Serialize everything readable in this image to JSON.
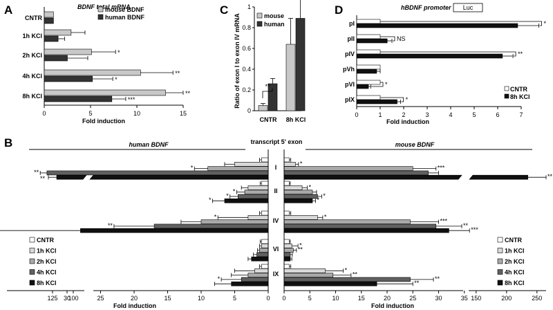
{
  "colors": {
    "mouse": "#c8c8c8",
    "human": "#333333",
    "CNTR": "#ffffff",
    "1h KCl": "#d8d8d8",
    "2h KCl": "#a8a8a8",
    "4h KCl": "#606060",
    "8h KCl": "#101010"
  },
  "chart_data": [
    {
      "id": "A",
      "type": "bar",
      "orientation": "horizontal",
      "panel_label": "A",
      "title": "BDNF total mRNA",
      "xlabel": "Fold induction",
      "ylabel": "",
      "xlim": [
        0,
        15
      ],
      "xticks": [
        "0",
        "5",
        "10",
        "15"
      ],
      "categories": [
        "CNTR",
        "1h KCl",
        "2h KCl",
        "4h KCl",
        "8h KCl"
      ],
      "legend_position": "top-right",
      "series": [
        {
          "name": "mouse BDNF",
          "values": [
            1.0,
            2.9,
            5.1,
            10.4,
            13.1
          ],
          "errors": [
            0.0,
            1.5,
            2.6,
            3.5,
            1.9
          ],
          "sig": [
            "",
            "",
            "*",
            "**",
            "**"
          ]
        },
        {
          "name": "human BDNF",
          "values": [
            1.0,
            1.5,
            2.5,
            5.2,
            7.3
          ],
          "errors": [
            0.0,
            0.7,
            2.2,
            2.2,
            1.5
          ],
          "sig": [
            "",
            "",
            "",
            "*",
            "***"
          ]
        }
      ]
    },
    {
      "id": "C",
      "type": "bar",
      "panel_label": "C",
      "title": "",
      "xlabel": "",
      "ylabel": "Ratio of exon I to exon IV mRNA",
      "ylim": [
        0,
        1
      ],
      "yticks": [
        "0",
        "0.2",
        "0.4",
        "0.6",
        "0.8",
        "1"
      ],
      "categories": [
        "CNTR",
        "8h KCl"
      ],
      "legend_position": "top-left",
      "series": [
        {
          "name": "mouse",
          "values": [
            0.05,
            0.64
          ],
          "errors": [
            0.02,
            0.25
          ]
        },
        {
          "name": "human",
          "values": [
            0.26,
            0.89
          ],
          "errors": [
            0.05,
            0.22
          ]
        }
      ],
      "annotations": [
        {
          "text": "**",
          "between": [
            "CNTR mouse",
            "CNTR human"
          ]
        }
      ]
    },
    {
      "id": "D",
      "type": "bar",
      "orientation": "horizontal",
      "panel_label": "D",
      "title": "hBDNF promoter",
      "title_box": "Luc",
      "xlabel": "Fold induction",
      "ylabel": "",
      "xlim": [
        0,
        7
      ],
      "xticks": [
        "0",
        "1",
        "2",
        "3",
        "4",
        "5",
        "6",
        "7"
      ],
      "categories": [
        "pI",
        "pII",
        "pIV",
        "pVh",
        "pVI",
        "pIX"
      ],
      "legend_position": "bottom-right",
      "series": [
        {
          "name": "CNTR",
          "values": [
            1,
            1,
            1,
            1,
            1,
            1
          ],
          "errors": [
            0,
            0,
            0,
            0,
            0,
            0
          ]
        },
        {
          "name": "8h KCl",
          "values": [
            6.85,
            1.3,
            6.2,
            0.85,
            0.5,
            1.72
          ],
          "errors": [
            0.9,
            0.2,
            0.45,
            0.15,
            0.1,
            0.15
          ]
        }
      ],
      "sig": [
        "*",
        "NS",
        "**",
        "",
        "*",
        "*"
      ]
    },
    {
      "id": "B",
      "type": "bar",
      "orientation": "horizontal",
      "panel_label": "B",
      "center_title": "transcript 5' exon",
      "left_title": "human BDNF",
      "right_title": "mouse BDNF",
      "xlabel": "Fold induction",
      "categories": [
        "I",
        "II",
        "IV",
        "VI",
        "IX"
      ],
      "series_names": [
        "CNTR",
        "1h KCl",
        "2h KCl",
        "4h KCl",
        "8h KCl"
      ],
      "legend_position": "bottom-left and bottom-right",
      "human_axis_main": {
        "xlim": [
          0,
          35
        ],
        "ticks": [
          "0",
          "5",
          "10",
          "15",
          "20",
          "25",
          "30"
        ]
      },
      "human_axis_break": {
        "xlim": [
          80,
          130
        ],
        "ticks": [
          "100",
          "125"
        ]
      },
      "mouse_axis_main": {
        "xlim": [
          0,
          38
        ],
        "ticks": [
          "0",
          "5",
          "10",
          "15",
          "20",
          "25",
          "30",
          "35"
        ]
      },
      "mouse_axis_break": {
        "xlim": [
          140,
          265
        ],
        "ticks": [
          "150",
          "200",
          "250"
        ]
      },
      "human": {
        "I": {
          "values": [
            1,
            5,
            9,
            33,
            120
          ],
          "errors": [
            0.3,
            1.5,
            2,
            1,
            10
          ],
          "sig": [
            "",
            "",
            "*",
            "**",
            "**"
          ]
        },
        "II": {
          "values": [
            1,
            3,
            3.5,
            4.5,
            6.5
          ],
          "errors": [
            0.2,
            1,
            1.2,
            1.2,
            1.8
          ],
          "sig": [
            "",
            "",
            "*",
            "*",
            "*"
          ]
        },
        "IV": {
          "values": [
            1,
            3,
            10,
            17,
            28
          ],
          "errors": [
            0.3,
            4.5,
            3,
            6,
            14.5
          ],
          "sig": [
            "",
            "*",
            "",
            "**",
            "***"
          ]
        },
        "VI": {
          "values": [
            1,
            1,
            1.3,
            1.7,
            2.5
          ],
          "errors": [
            0.2,
            0.3,
            0.3,
            0.5,
            0.5
          ],
          "sig": [
            "",
            "",
            "",
            "",
            ""
          ]
        },
        "IX": {
          "values": [
            1,
            2,
            3,
            4,
            5.5
          ],
          "errors": [
            0.3,
            3,
            2.5,
            3,
            2.5
          ],
          "sig": [
            "",
            "",
            "",
            "*",
            ""
          ]
        }
      },
      "mouse": {
        "I": {
          "values": [
            1,
            2.2,
            25,
            28,
            235
          ],
          "errors": [
            0.3,
            0.6,
            4.5,
            2,
            30
          ],
          "sig": [
            "",
            "*",
            "***",
            "",
            "**"
          ]
        },
        "II": {
          "values": [
            1,
            3.5,
            5.5,
            6.5,
            5.5
          ],
          "errors": [
            0.2,
            1,
            0.8,
            0.8,
            0.6
          ],
          "sig": [
            "",
            "*",
            "",
            "*",
            "*"
          ]
        },
        "IV": {
          "values": [
            1,
            6.5,
            24.5,
            29.5,
            32
          ],
          "errors": [
            0.3,
            1,
            5.5,
            5,
            4
          ],
          "sig": [
            "",
            "*",
            "***",
            "**",
            "***"
          ]
        },
        "VI": {
          "values": [
            1,
            1.5,
            1.8,
            1.2,
            1.2
          ],
          "errors": [
            0.2,
            1.2,
            0.6,
            0.4,
            0.3
          ],
          "sig": [
            "",
            "*",
            "**",
            "",
            ""
          ]
        },
        "IX": {
          "values": [
            1,
            8,
            9.5,
            24.5,
            18
          ],
          "errors": [
            0.3,
            3.5,
            3.5,
            4.5,
            7
          ],
          "sig": [
            "",
            "*",
            "**",
            "**",
            "**"
          ]
        }
      }
    }
  ]
}
